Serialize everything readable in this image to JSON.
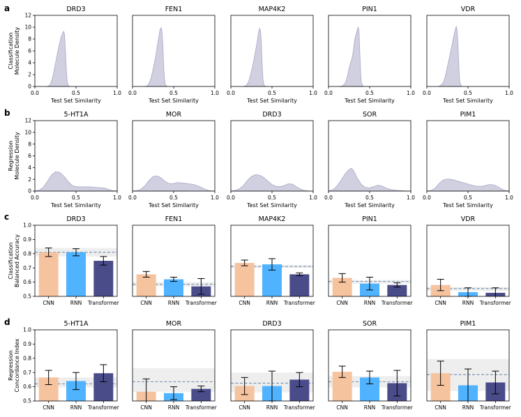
{
  "row_labels": [
    "a",
    "b",
    "c",
    "d"
  ],
  "colors": {
    "density_fill": "#cbcbde",
    "density_line": "#a9a9c8",
    "cnn": "#f6c39f",
    "rnn": "#4fb3ff",
    "transformer": "#4a4c8a",
    "baseline": "#7f97b6",
    "band": "#eeeeee"
  },
  "chart_data": [
    {
      "row": "a",
      "type": "area",
      "ylabel_lines": [
        "Classification",
        "Molecule Density"
      ],
      "xlabel": "Test Set Similarity",
      "xlim": [
        0,
        1.0
      ],
      "ylim": [
        0,
        12
      ],
      "xticks": [
        "0.0",
        "0.5",
        "1.0"
      ],
      "yticks": [
        "0",
        "2",
        "4",
        "6",
        "8",
        "10",
        "12"
      ],
      "panels": [
        {
          "title": "DRD3",
          "x": [
            0.15,
            0.18,
            0.2,
            0.22,
            0.24,
            0.26,
            0.28,
            0.3,
            0.32,
            0.34,
            0.35,
            0.36,
            0.37,
            0.38,
            0.39,
            0.4,
            0.42
          ],
          "y": [
            0,
            0.2,
            0.8,
            1.8,
            3.2,
            4.6,
            6.0,
            7.3,
            8.4,
            9.1,
            9.3,
            8.8,
            6.5,
            3.5,
            1.2,
            0.3,
            0
          ]
        },
        {
          "title": "FEN1",
          "x": [
            0.15,
            0.18,
            0.2,
            0.22,
            0.24,
            0.26,
            0.28,
            0.3,
            0.32,
            0.33,
            0.34,
            0.35,
            0.36,
            0.37,
            0.38,
            0.39,
            0.4,
            0.42
          ],
          "y": [
            0,
            0.1,
            0.5,
            1.2,
            2.3,
            3.6,
            5.0,
            6.7,
            8.4,
            9.3,
            9.8,
            9.9,
            9.0,
            6.5,
            3.0,
            1.0,
            0.3,
            0
          ]
        },
        {
          "title": "MAP4K2",
          "x": [
            0.15,
            0.18,
            0.2,
            0.22,
            0.24,
            0.26,
            0.28,
            0.3,
            0.32,
            0.33,
            0.34,
            0.35,
            0.36,
            0.37,
            0.38,
            0.39,
            0.4,
            0.42
          ],
          "y": [
            0,
            0.1,
            0.4,
            1.0,
            2.0,
            3.2,
            4.5,
            6.0,
            7.6,
            8.6,
            9.4,
            9.8,
            9.5,
            7.5,
            3.8,
            1.3,
            0.3,
            0
          ]
        },
        {
          "title": "PIN1",
          "x": [
            0.14,
            0.17,
            0.2,
            0.22,
            0.24,
            0.26,
            0.27,
            0.28,
            0.3,
            0.31,
            0.32,
            0.33,
            0.34,
            0.35,
            0.36,
            0.37,
            0.38,
            0.39,
            0.4,
            0.42
          ],
          "y": [
            0,
            0.1,
            0.5,
            1.2,
            2.4,
            3.6,
            4.1,
            4.4,
            5.8,
            7.0,
            8.0,
            8.6,
            9.0,
            9.6,
            10.0,
            9.5,
            6.0,
            2.5,
            0.6,
            0
          ]
        },
        {
          "title": "VDR",
          "x": [
            0.14,
            0.17,
            0.2,
            0.22,
            0.24,
            0.26,
            0.28,
            0.3,
            0.32,
            0.34,
            0.35,
            0.36,
            0.37,
            0.38,
            0.39,
            0.4,
            0.42
          ],
          "y": [
            0,
            0.2,
            0.7,
            1.5,
            2.7,
            4.0,
            5.3,
            6.6,
            8.0,
            9.3,
            9.9,
            10.1,
            9.2,
            6.5,
            3.0,
            0.8,
            0
          ]
        }
      ]
    },
    {
      "row": "b",
      "type": "area",
      "ylabel_lines": [
        "Regression",
        "Molecule Density"
      ],
      "xlabel": "Test Set Similarity",
      "xlim": [
        0,
        1.0
      ],
      "ylim": [
        0,
        12
      ],
      "xticks": [
        "0.0",
        "0.5",
        "1.0"
      ],
      "yticks": [
        "0",
        "2",
        "4",
        "6",
        "8",
        "10",
        "12"
      ],
      "panels": [
        {
          "title": "5-HT1A",
          "x": [
            0.0,
            0.05,
            0.1,
            0.15,
            0.2,
            0.25,
            0.3,
            0.35,
            0.4,
            0.45,
            0.5,
            0.55,
            0.6,
            0.65,
            0.7,
            0.75,
            0.8,
            0.85,
            0.9,
            0.95,
            1.0
          ],
          "y": [
            0.02,
            0.15,
            0.6,
            1.6,
            2.7,
            3.3,
            3.2,
            2.6,
            1.7,
            1.0,
            0.75,
            0.72,
            0.72,
            0.72,
            0.68,
            0.62,
            0.58,
            0.5,
            0.25,
            0.07,
            0.01
          ]
        },
        {
          "title": "MOR",
          "x": [
            0.0,
            0.05,
            0.1,
            0.15,
            0.2,
            0.25,
            0.3,
            0.35,
            0.4,
            0.45,
            0.5,
            0.55,
            0.6,
            0.65,
            0.7,
            0.75,
            0.8,
            0.85,
            0.9,
            0.95,
            1.0
          ],
          "y": [
            0.02,
            0.08,
            0.3,
            0.9,
            1.8,
            2.5,
            2.6,
            2.2,
            1.6,
            1.25,
            1.3,
            1.45,
            1.4,
            1.3,
            1.2,
            1.1,
            0.85,
            0.5,
            0.2,
            0.05,
            0.01
          ]
        },
        {
          "title": "DRD3",
          "x": [
            0.0,
            0.05,
            0.1,
            0.15,
            0.2,
            0.25,
            0.3,
            0.35,
            0.4,
            0.45,
            0.5,
            0.55,
            0.6,
            0.65,
            0.7,
            0.75,
            0.8,
            0.85,
            0.9,
            0.95,
            1.0
          ],
          "y": [
            0.02,
            0.1,
            0.35,
            0.9,
            1.8,
            2.5,
            2.8,
            2.7,
            2.3,
            1.7,
            1.1,
            0.8,
            0.75,
            0.95,
            1.25,
            1.15,
            0.7,
            0.3,
            0.1,
            0.03,
            0.01
          ]
        },
        {
          "title": "SOR",
          "x": [
            0.0,
            0.05,
            0.1,
            0.15,
            0.2,
            0.25,
            0.28,
            0.3,
            0.35,
            0.4,
            0.45,
            0.5,
            0.55,
            0.6,
            0.65,
            0.7,
            0.75,
            0.8,
            0.85,
            0.9,
            0.95,
            1.0
          ],
          "y": [
            0.02,
            0.2,
            0.8,
            1.8,
            2.9,
            3.7,
            3.9,
            3.6,
            2.2,
            1.1,
            0.6,
            0.55,
            0.75,
            1.0,
            0.85,
            0.5,
            0.3,
            0.18,
            0.1,
            0.05,
            0.02,
            0.01
          ]
        },
        {
          "title": "PIM1",
          "x": [
            0.0,
            0.05,
            0.1,
            0.15,
            0.2,
            0.25,
            0.3,
            0.35,
            0.4,
            0.45,
            0.5,
            0.55,
            0.6,
            0.65,
            0.7,
            0.75,
            0.8,
            0.85,
            0.9,
            0.95,
            1.0
          ],
          "y": [
            0.02,
            0.1,
            0.5,
            1.3,
            1.9,
            2.05,
            2.0,
            1.8,
            1.6,
            1.4,
            1.2,
            1.0,
            0.85,
            0.8,
            0.9,
            1.1,
            1.1,
            0.85,
            0.4,
            0.12,
            0.02
          ]
        }
      ]
    },
    {
      "row": "c",
      "type": "bar",
      "ylabel_lines": [
        "Classification",
        "Balanced Accuracy"
      ],
      "categories": [
        "CNN",
        "RNN",
        "Transformer"
      ],
      "ylim": [
        0.5,
        1.0
      ],
      "yticks": [
        "0.5",
        "0.6",
        "0.7",
        "0.8",
        "0.9",
        "1.0"
      ],
      "panels": [
        {
          "title": "DRD3",
          "values": [
            0.81,
            0.81,
            0.75
          ],
          "errors": [
            0.03,
            0.025,
            0.03
          ],
          "baseline": 0.81,
          "band": [
            0.78,
            0.84
          ]
        },
        {
          "title": "FEN1",
          "values": [
            0.655,
            0.62,
            0.57
          ],
          "errors": [
            0.02,
            0.015,
            0.055
          ],
          "baseline": 0.585,
          "band": [
            0.57,
            0.6
          ]
        },
        {
          "title": "MAP4K2",
          "values": [
            0.735,
            0.725,
            0.655
          ],
          "errors": [
            0.02,
            0.04,
            0.01
          ],
          "baseline": 0.71,
          "band": [
            0.7,
            0.72
          ]
        },
        {
          "title": "PIN1",
          "values": [
            0.63,
            0.59,
            0.58
          ],
          "errors": [
            0.03,
            0.045,
            0.015
          ],
          "baseline": 0.605,
          "band": [
            0.59,
            0.615
          ]
        },
        {
          "title": "VDR",
          "values": [
            0.58,
            0.53,
            0.525
          ],
          "errors": [
            0.04,
            0.03,
            0.035
          ],
          "baseline": 0.555,
          "band": [
            0.54,
            0.565
          ]
        }
      ]
    },
    {
      "row": "d",
      "type": "bar",
      "ylabel_lines": [
        "Regression",
        "Concordance Index"
      ],
      "categories": [
        "CNN",
        "RNN",
        "Transformer"
      ],
      "ylim": [
        0.5,
        1.0
      ],
      "yticks": [
        "0.5",
        "0.6",
        "0.7",
        "0.8",
        "0.9",
        "1.0"
      ],
      "panels": [
        {
          "title": "5-HT1A",
          "values": [
            0.665,
            0.64,
            0.695
          ],
          "errors": [
            0.05,
            0.06,
            0.06
          ],
          "baseline": 0.62,
          "band": [
            0.595,
            0.665
          ]
        },
        {
          "title": "MOR",
          "values": [
            0.565,
            0.555,
            0.585
          ],
          "errors": [
            0.09,
            0.045,
            0.02
          ],
          "baseline": 0.635,
          "band": [
            0.565,
            0.73
          ]
        },
        {
          "title": "DRD3",
          "values": [
            0.605,
            0.605,
            0.65
          ],
          "errors": [
            0.06,
            0.105,
            0.05
          ],
          "baseline": 0.625,
          "band": [
            0.56,
            0.7
          ]
        },
        {
          "title": "SOR",
          "values": [
            0.705,
            0.665,
            0.625
          ],
          "errors": [
            0.04,
            0.045,
            0.09
          ],
          "baseline": 0.635,
          "band": [
            0.595,
            0.675
          ]
        },
        {
          "title": "PIM1",
          "values": [
            0.695,
            0.61,
            0.63
          ],
          "errors": [
            0.085,
            0.115,
            0.08
          ],
          "baseline": 0.685,
          "band": [
            0.57,
            0.795
          ]
        }
      ]
    }
  ]
}
